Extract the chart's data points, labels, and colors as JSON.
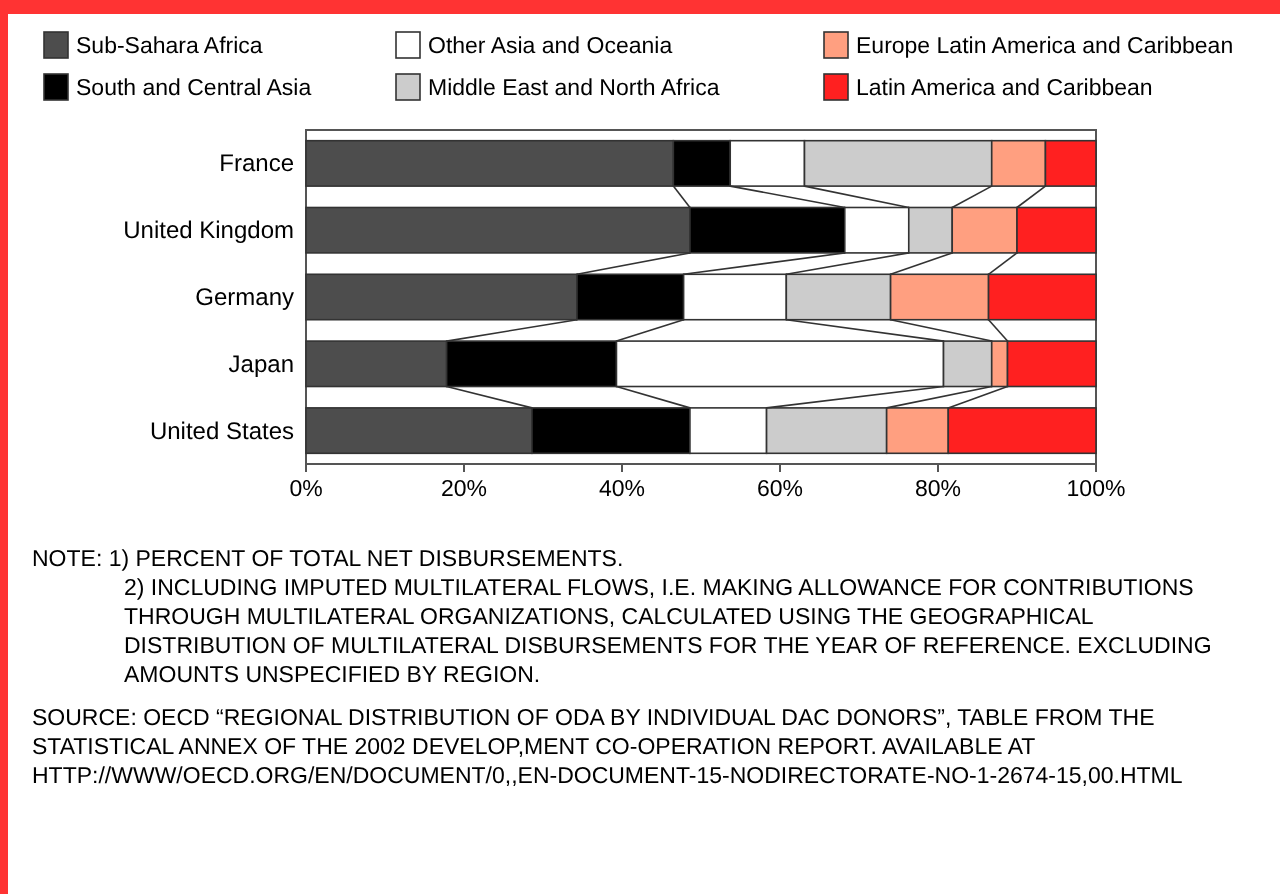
{
  "chart_data": {
    "type": "bar",
    "orientation": "horizontal",
    "stacked": true,
    "categories": [
      "France",
      "United Kingdom",
      "Germany",
      "Japan",
      "United States"
    ],
    "series": [
      {
        "name": "Sub-Sahara Africa",
        "color": "#4d4d4d",
        "values": [
          46.5,
          48.6,
          34.3,
          17.8,
          28.6
        ]
      },
      {
        "name": "South and Central Asia",
        "color": "#000000",
        "values": [
          7.2,
          19.6,
          13.5,
          21.5,
          20.0
        ]
      },
      {
        "name": "Other Asia and Oceania",
        "color": "#ffffff",
        "values": [
          9.4,
          8.1,
          13.0,
          41.4,
          9.7
        ]
      },
      {
        "name": "Middle East and North Africa",
        "color": "#cccccc",
        "values": [
          23.7,
          5.5,
          13.2,
          6.1,
          15.2
        ]
      },
      {
        "name": "Europe Latin America and Caribbean",
        "color": "#ff9f80",
        "values": [
          6.8,
          8.2,
          12.4,
          2.0,
          7.8
        ]
      },
      {
        "name": "Latin America and Caribbean",
        "color": "#ff2020",
        "values": [
          6.4,
          10.0,
          13.6,
          11.2,
          18.7
        ]
      }
    ],
    "xlim": [
      0,
      100
    ],
    "xticks": [
      {
        "value": 0,
        "label": "0%"
      },
      {
        "value": 20,
        "label": "20%"
      },
      {
        "value": 40,
        "label": "40%"
      },
      {
        "value": 60,
        "label": "60%"
      },
      {
        "value": 80,
        "label": "80%"
      },
      {
        "value": 100,
        "label": "100%"
      }
    ],
    "legend": "top",
    "annotations": [
      "NOTE: 1) PERCENT OF TOTAL NET DISBURSEMENTS.",
      "2) INCLUDING IMPUTED MULTILATERAL FLOWS, I.E. MAKING ALLOWANCE FOR CONTRIBUTIONS THROUGH MULTILATERAL ORGANIZATIONS, CALCULATED USING THE GEOGRAPHICAL DISTRIBUTION OF MULTILATERAL DISBURSEMENTS FOR THE YEAR OF REFERENCE. EXCLUDING AMOUNTS UNSPECIFIED BY REGION.",
      "SOURCE: OECD “REGIONAL DISTRIBUTION OF ODA BY INDIVIDUAL DAC DONORS”, TABLE FROM THE STATISTICAL ANNEX OF THE 2002 DEVELOP,MENT CO-OPERATION REPORT. AVAILABLE AT HTTP://WWW/OECD.ORG/EN/DOCUMENT/0,,EN-DOCUMENT-15-NODIRECTORATE-NO-1-2674-15,00.HTML"
    ]
  }
}
